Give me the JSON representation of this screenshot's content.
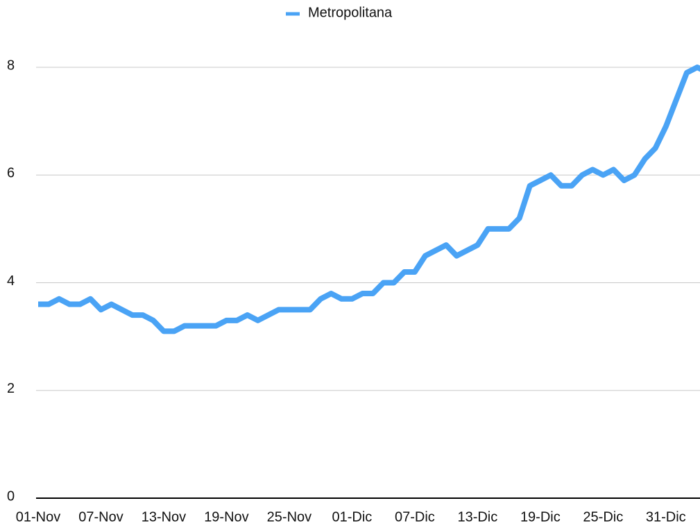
{
  "chart_data": {
    "type": "line",
    "categories": [
      "01-Nov",
      null,
      null,
      null,
      null,
      null,
      "07-Nov",
      null,
      null,
      null,
      null,
      null,
      "13-Nov",
      null,
      null,
      null,
      null,
      null,
      "19-Nov",
      null,
      null,
      null,
      null,
      null,
      "25-Nov",
      null,
      null,
      null,
      null,
      null,
      "01-Dic",
      null,
      null,
      null,
      null,
      null,
      "07-Dic",
      null,
      null,
      null,
      null,
      null,
      "13-Dic",
      null,
      null,
      null,
      null,
      null,
      "19-Dic",
      null,
      null,
      null,
      null,
      null,
      "25-Dic",
      null,
      null,
      null,
      null,
      null,
      "31-Dic",
      null,
      null,
      null,
      null
    ],
    "series": [
      {
        "name": "Metropolitana",
        "color": "#4aa3f5",
        "values": [
          3.6,
          3.6,
          3.7,
          3.6,
          3.6,
          3.7,
          3.5,
          3.6,
          3.5,
          3.4,
          3.4,
          3.3,
          3.1,
          3.1,
          3.2,
          3.2,
          3.2,
          3.2,
          3.3,
          3.3,
          3.4,
          3.3,
          3.4,
          3.5,
          3.5,
          3.5,
          3.5,
          3.7,
          3.8,
          3.7,
          3.7,
          3.8,
          3.8,
          4.0,
          4.0,
          4.2,
          4.2,
          4.5,
          4.6,
          4.7,
          4.5,
          4.6,
          4.7,
          5.0,
          5.0,
          5.0,
          5.2,
          5.8,
          5.9,
          6.0,
          5.8,
          5.8,
          6.0,
          6.1,
          6.0,
          6.1,
          5.9,
          6.0,
          6.3,
          6.5,
          6.9,
          7.4,
          7.9,
          8.0,
          7.9
        ]
      }
    ],
    "ylim": [
      0,
      8
    ],
    "yticks": [
      0,
      2,
      4,
      6,
      8
    ],
    "grid": true,
    "legend": "top"
  }
}
